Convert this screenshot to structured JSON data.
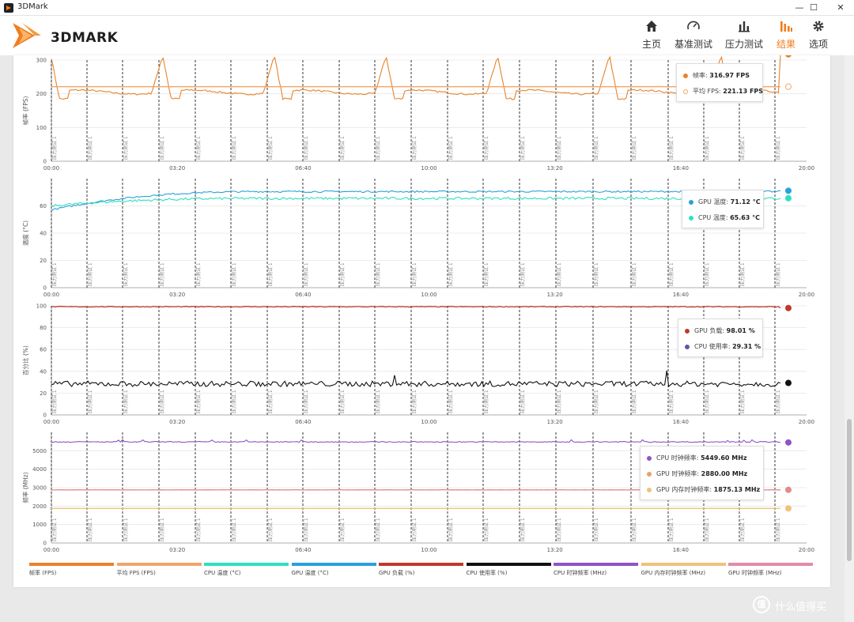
{
  "window": {
    "title": "3DMark",
    "minimize_glyph": "—",
    "maximize_glyph": "☐",
    "close_glyph": "✕"
  },
  "brand": {
    "logo_text": "3DMARK",
    "accent_color": "#f07d1e"
  },
  "nav": [
    {
      "label": "主页",
      "icon": "home-icon",
      "active": false
    },
    {
      "label": "基准测试",
      "icon": "gauge-icon",
      "active": false
    },
    {
      "label": "压力测试",
      "icon": "bar-chart-icon",
      "active": false
    },
    {
      "label": "结果",
      "icon": "results-icon",
      "active": true
    },
    {
      "label": "选项",
      "icon": "gear-icon",
      "active": false
    }
  ],
  "chart_data": [
    {
      "type": "line",
      "ylabel": "帧率 (FPS)",
      "ylim": [
        0,
        300
      ],
      "yticks": [
        0,
        100,
        200,
        300
      ],
      "xlim": [
        0,
        1200
      ],
      "xticks": [
        "00:00",
        "03:20",
        "06:40",
        "10:00",
        "13:20",
        "16:40",
        "20:00"
      ],
      "marker_label": "压力测试 1",
      "series": [
        {
          "name": "帧率",
          "color": "#e8832a",
          "pattern": "spike",
          "base": 205,
          "peak": 318,
          "min": 185,
          "period": 55,
          "last": 316.97
        },
        {
          "name": "平均 FPS",
          "color": "#f0a56a",
          "pattern": "flat",
          "base": 221.13,
          "last": 221.13
        }
      ],
      "tooltip": [
        {
          "name": "帧率",
          "value": "316.97 FPS",
          "color": "#e8832a",
          "hollow": false
        },
        {
          "name": "平均 FPS",
          "value": "221.13 FPS",
          "color": "#f0a56a",
          "hollow": true
        }
      ]
    },
    {
      "type": "line",
      "ylabel": "温度 (°C)",
      "ylim": [
        0,
        80
      ],
      "yticks": [
        0,
        20,
        40,
        60
      ],
      "xlim": [
        0,
        1200
      ],
      "xticks": [
        "00:00",
        "03:20",
        "06:40",
        "10:00",
        "13:20",
        "16:40",
        "20:00"
      ],
      "marker_label": "压力测试 1",
      "series": [
        {
          "name": "GPU 温度",
          "color": "#2aa0dc",
          "pattern": "rise",
          "start": 57,
          "base": 70.5,
          "noise": 0.6,
          "last": 71.12
        },
        {
          "name": "CPU 温度",
          "color": "#2ee0c0",
          "pattern": "rise",
          "start": 60,
          "base": 65.5,
          "noise": 0.9,
          "last": 65.63
        }
      ],
      "tooltip": [
        {
          "name": "GPU 温度",
          "value": "71.12 °C",
          "color": "#2aa0dc",
          "hollow": false
        },
        {
          "name": "CPU 温度",
          "value": "65.63 °C",
          "color": "#2ee0c0",
          "hollow": false
        }
      ]
    },
    {
      "type": "line",
      "ylabel": "百分比 (%)",
      "ylim": [
        0,
        100
      ],
      "yticks": [
        0,
        20,
        40,
        60,
        80,
        100
      ],
      "xlim": [
        0,
        1200
      ],
      "xticks": [
        "00:00",
        "03:20",
        "06:40",
        "10:00",
        "13:20",
        "16:40",
        "20:00"
      ],
      "marker_label": "压力测试 1",
      "series": [
        {
          "name": "GPU 负载",
          "color": "#c0392b",
          "pattern": "flat",
          "base": 99.2,
          "noise": 0.3,
          "last": 98.01
        },
        {
          "name": "CPU 使用率",
          "color": "#111111",
          "pattern": "noisy",
          "base": 28.5,
          "noise": 2.5,
          "last": 29.31
        }
      ],
      "tooltip": [
        {
          "name": "GPU 负载",
          "value": "98.01 %",
          "color": "#c0392b",
          "hollow": false
        },
        {
          "name": "CPU 使用率",
          "value": "29.31 %",
          "color": "#6a4fb0",
          "hollow": false
        }
      ]
    },
    {
      "type": "line",
      "ylabel": "频率 (MHz)",
      "ylim": [
        0,
        6000
      ],
      "yticks": [
        0,
        1000,
        2000,
        3000,
        4000,
        5000
      ],
      "xlim": [
        0,
        1200
      ],
      "xticks": [
        "00:00",
        "03:20",
        "06:40",
        "10:00",
        "13:20",
        "16:40",
        "20:00"
      ],
      "marker_label": "压力测试 1",
      "series": [
        {
          "name": "CPU 时钟频率",
          "color": "#8e54c8",
          "pattern": "noisy",
          "base": 5480,
          "noise": 25,
          "last": 5449.6
        },
        {
          "name": "GPU 时钟频率",
          "color": "#e48a8a",
          "pattern": "flat",
          "base": 2880,
          "noise": 5,
          "last": 2880.0
        },
        {
          "name": "GPU 内存时钟频率",
          "color": "#f0c27a",
          "pattern": "flat",
          "base": 1875,
          "noise": 0,
          "last": 1875.13
        }
      ],
      "tooltip": [
        {
          "name": "CPU 时钟频率",
          "value": "5449.60 MHz",
          "color": "#8e54c8",
          "hollow": false
        },
        {
          "name": "GPU 时钟频率",
          "value": "2880.00 MHz",
          "color": "#e8a070",
          "hollow": false
        },
        {
          "name": "GPU 内存时钟频率",
          "value": "1875.13 MHz",
          "color": "#f0c27a",
          "hollow": false
        }
      ]
    }
  ],
  "legend": [
    {
      "label": "帧率 (FPS)",
      "color": "#e8832a"
    },
    {
      "label": "平均 FPS (FPS)",
      "color": "#f0a56a"
    },
    {
      "label": "CPU 温度 (°C)",
      "color": "#2ee0c0"
    },
    {
      "label": "GPU 温度 (°C)",
      "color": "#2aa0dc"
    },
    {
      "label": "GPU 负载 (%)",
      "color": "#c0392b"
    },
    {
      "label": "CPU 使用率 (%)",
      "color": "#111111"
    },
    {
      "label": "CPU 时钟频率 (MHz)",
      "color": "#8e54c8"
    },
    {
      "label": "GPU 内存时钟频率 (MHz)",
      "color": "#f0c27a"
    },
    {
      "label": "GPU 时钟频率 (MHz)",
      "color": "#e48aa8"
    }
  ],
  "watermark": {
    "badge": "值",
    "text": "什么值得买"
  }
}
